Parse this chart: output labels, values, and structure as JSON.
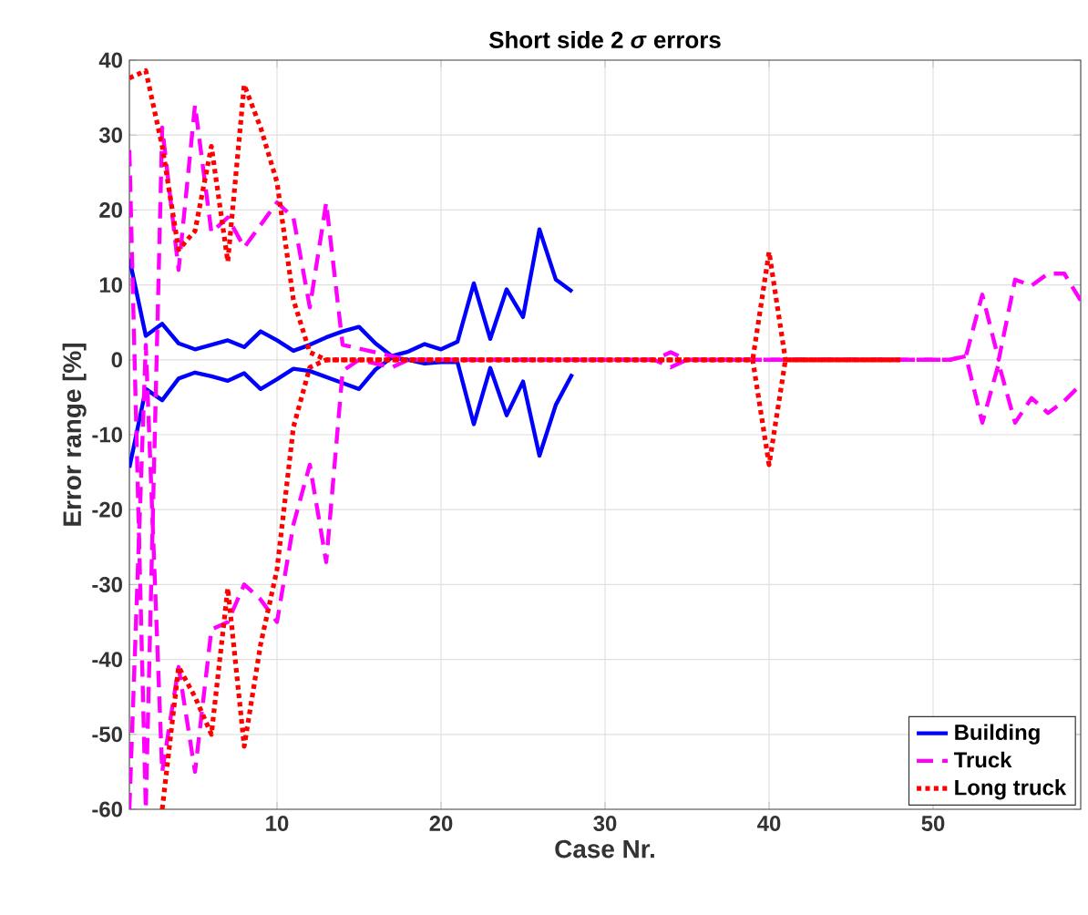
{
  "chart_data": {
    "type": "line",
    "title": "Short side 2 *σ* errors",
    "xlabel": "Case Nr.",
    "ylabel": "Error range [%]",
    "xlim": [
      1,
      59
    ],
    "xticks": [
      10,
      20,
      30,
      40,
      50
    ],
    "ylim": [
      -60,
      40
    ],
    "yticks": [
      -60,
      -50,
      -40,
      -30,
      -20,
      -10,
      0,
      10,
      20,
      30,
      40
    ],
    "grid": true,
    "legend": "bottom right",
    "series": [
      {
        "name": "Building",
        "color": "#0000ff",
        "line_style": "solid",
        "x": [
          1,
          2,
          3,
          4,
          5,
          6,
          7,
          8,
          9,
          10,
          11,
          12,
          13,
          14,
          15,
          16,
          17,
          18,
          19,
          20,
          21,
          22,
          23,
          24,
          25,
          26,
          27,
          28
        ],
        "values": [
          13.5,
          3.2,
          4.8,
          2.2,
          1.4,
          2.0,
          2.6,
          1.7,
          3.8,
          2.6,
          1.2,
          2.0,
          3.0,
          3.8,
          4.4,
          2.2,
          0.5,
          1.1,
          2.1,
          1.4,
          2.4,
          10.2,
          2.8,
          9.4,
          5.7,
          17.4,
          10.7,
          9.1
        ]
      },
      {
        "color": "#0000ff",
        "line_style": "solid",
        "x": [
          1,
          2,
          3,
          4,
          5,
          6,
          7,
          8,
          9,
          10,
          11,
          12,
          13,
          14,
          15,
          16,
          17,
          18,
          19,
          20,
          21,
          22,
          23,
          24,
          25,
          26,
          27,
          28
        ],
        "values": [
          -14.4,
          -3.9,
          -5.4,
          -2.5,
          -1.7,
          -2.2,
          -2.8,
          -1.8,
          -3.9,
          -2.6,
          -1.2,
          -1.5,
          -2.3,
          -3.1,
          -3.9,
          -1.3,
          0.3,
          0,
          -0.5,
          -0.3,
          -0.3,
          -8.6,
          -1.1,
          -7.4,
          -2.9,
          -12.8,
          -6.0,
          -1.9
        ]
      },
      {
        "name": "Truck",
        "color": "#ff00ff",
        "line_style": "dashed",
        "x": [
          1,
          2,
          3,
          4,
          5,
          6,
          7,
          8,
          9,
          10,
          11,
          12,
          13,
          14,
          15,
          16,
          17,
          18,
          19,
          20,
          21,
          22,
          23,
          24,
          25,
          26,
          27,
          28,
          29,
          30,
          31,
          32,
          33,
          34,
          35,
          36,
          37,
          38,
          39,
          40,
          41,
          42,
          43,
          44,
          45,
          46,
          47,
          48,
          49,
          50,
          51,
          52,
          53,
          54,
          55,
          56,
          57,
          58,
          59
        ],
        "values": [
          28,
          -60,
          31,
          12,
          34,
          17,
          19,
          15,
          18,
          21,
          19,
          7,
          21,
          2,
          1.5,
          1,
          0.5,
          0,
          0,
          0,
          0,
          0,
          0,
          0,
          0,
          0,
          0,
          0,
          0,
          0,
          0,
          0,
          0,
          1,
          0,
          0,
          0,
          0,
          0,
          0,
          0,
          0,
          0,
          0,
          0,
          0,
          0,
          0,
          0,
          0,
          0,
          0.5,
          8.7,
          0,
          10.7,
          9.9,
          11.5,
          11.5,
          7.9
        ]
      },
      {
        "color": "#ff00ff",
        "line_style": "dashed",
        "x": [
          1,
          2,
          3,
          4,
          5,
          6,
          7,
          8,
          9,
          10,
          11,
          12,
          13,
          14,
          15,
          16,
          17,
          18,
          19,
          20,
          21,
          22,
          23,
          24,
          25,
          26,
          27,
          28,
          29,
          30,
          31,
          32,
          33,
          34,
          35,
          36,
          37,
          38,
          39,
          40,
          41,
          42,
          43,
          44,
          45,
          46,
          47,
          48,
          49,
          50,
          51,
          52,
          53,
          54,
          55,
          56,
          57,
          58,
          59
        ],
        "values": [
          -60,
          2,
          -55,
          -41,
          -55,
          -36,
          -35,
          -30,
          -32,
          -35,
          -22,
          -14,
          -27,
          -1.5,
          0,
          -0.5,
          -1,
          0,
          0,
          0,
          0,
          0,
          0,
          0,
          0,
          0,
          0,
          0,
          0,
          0,
          0,
          0,
          0,
          -1,
          0,
          0,
          0,
          0,
          0,
          0,
          0,
          0,
          0,
          0,
          0,
          0,
          0,
          0,
          0,
          0,
          0,
          0.5,
          -8.4,
          -0.5,
          -8.4,
          -5.1,
          -7.1,
          -5.5,
          -3.3
        ]
      },
      {
        "name": "Long truck",
        "color": "#ff0000",
        "line_style": "dotted",
        "x": [
          1,
          2,
          3,
          4,
          5,
          6,
          7,
          8,
          9,
          10,
          11,
          12,
          13,
          14,
          15,
          16,
          17,
          18,
          19,
          20,
          21,
          22,
          23,
          24,
          25,
          26,
          27,
          28,
          29,
          30,
          31,
          32,
          33,
          34,
          35,
          36,
          37,
          38,
          39,
          40,
          41,
          42,
          43,
          44,
          45,
          46,
          47,
          48
        ],
        "values": [
          37.6,
          38.6,
          28.5,
          14.7,
          17.2,
          28.5,
          13.1,
          36.7,
          31,
          23.7,
          8,
          1,
          0,
          0,
          0,
          0,
          0,
          0,
          0,
          0,
          0,
          0,
          0,
          0,
          0,
          0,
          0,
          0,
          0,
          0,
          0,
          0,
          0,
          0,
          0,
          0,
          0,
          0,
          0,
          14.4,
          0,
          0,
          0,
          0,
          0,
          0,
          0,
          0
        ]
      },
      {
        "color": "#ff0000",
        "line_style": "dotted",
        "x": [
          3,
          4,
          5,
          6,
          7,
          8,
          9,
          10,
          11,
          12,
          13,
          14,
          15,
          16,
          17,
          18,
          19,
          20,
          21,
          22,
          23,
          24,
          25,
          26,
          27,
          28,
          29,
          30,
          31,
          32,
          33,
          34,
          35,
          36,
          37,
          38,
          39,
          40,
          41,
          42,
          43,
          44,
          45,
          46,
          47,
          48
        ],
        "values": [
          -60,
          -41,
          -45,
          -50,
          -30.5,
          -51.6,
          -38,
          -28,
          -9,
          -1,
          0,
          0,
          0,
          0,
          0,
          0,
          0,
          0,
          0,
          0,
          0,
          0,
          0,
          0,
          0,
          0,
          0,
          0,
          0,
          0,
          0,
          0,
          0,
          0,
          0,
          0,
          0,
          -14,
          0,
          0,
          0,
          0,
          0,
          0,
          0,
          0
        ]
      }
    ]
  }
}
